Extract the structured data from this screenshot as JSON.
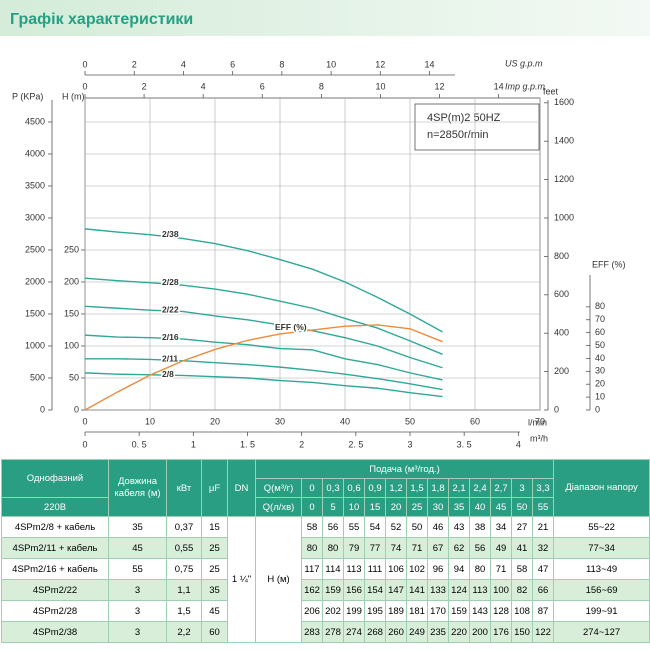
{
  "header": {
    "title": "Графік характеристики"
  },
  "chart_data": {
    "type": "line",
    "model_label": "4SP(m)2  50HZ",
    "speed_label": "n=2850r/min",
    "p_label": "P (KPa)",
    "h_label": "H (m)",
    "feet_label": "feet",
    "eff_label": "EFF (%)",
    "us_label": "US g.p.m",
    "imp_label": "Imp g.p.m",
    "x_label": "l/min",
    "m3h_label": "m³/h",
    "x": [
      0,
      5,
      10,
      15,
      20,
      25,
      30,
      35,
      40,
      45,
      50,
      55
    ],
    "series": [
      {
        "name": "2/8",
        "color": "#2fa897",
        "values": [
          58,
          56,
          55,
          54,
          52,
          50,
          46,
          43,
          38,
          34,
          27,
          21
        ]
      },
      {
        "name": "2/11",
        "color": "#2fa897",
        "values": [
          80,
          80,
          79,
          77,
          74,
          71,
          67,
          62,
          56,
          49,
          41,
          32
        ]
      },
      {
        "name": "2/16",
        "color": "#2fa897",
        "values": [
          117,
          114,
          113,
          111,
          106,
          102,
          96,
          94,
          80,
          71,
          58,
          47
        ]
      },
      {
        "name": "2/22",
        "color": "#2fa897",
        "values": [
          162,
          159,
          156,
          154,
          147,
          141,
          133,
          124,
          113,
          100,
          82,
          66
        ]
      },
      {
        "name": "2/28",
        "color": "#2fa897",
        "values": [
          206,
          202,
          199,
          195,
          189,
          181,
          170,
          159,
          143,
          128,
          108,
          87
        ]
      },
      {
        "name": "2/38",
        "color": "#2fa897",
        "values": [
          283,
          278,
          274,
          268,
          260,
          249,
          235,
          220,
          200,
          176,
          150,
          122
        ]
      },
      {
        "name": "EFF (%)",
        "color": "#ee8a3c",
        "axis": "y2",
        "values": [
          0,
          14,
          27,
          38,
          47,
          54,
          59,
          62,
          65,
          66,
          63,
          53
        ]
      }
    ],
    "xlim": [
      0,
      70
    ],
    "xticks": [
      0,
      10,
      20,
      30,
      40,
      50,
      60,
      70
    ],
    "m3h_lim": [
      0,
      4.2
    ],
    "m3h_ticks": [
      0,
      {
        "value": 0.5,
        "label": "0. 5"
      },
      1,
      {
        "value": 1.5,
        "label": "1. 5"
      },
      2,
      {
        "value": 2.5,
        "label": "2. 5"
      },
      3,
      {
        "value": 3.5,
        "label": "3. 5"
      },
      4
    ],
    "us_lim": [
      0,
      18.49
    ],
    "us_ticks": [
      0,
      2,
      4,
      6,
      8,
      10,
      12,
      14
    ],
    "imp_lim": [
      0,
      15.4
    ],
    "imp_ticks": [
      0,
      2,
      4,
      6,
      8,
      10,
      12,
      14
    ],
    "ylim": [
      0,
      487.5
    ],
    "yticks": [
      0,
      50,
      100,
      150,
      200,
      250
    ],
    "p_lim": [
      0,
      4875
    ],
    "p_ticks": [
      0,
      500,
      1000,
      1500,
      2000,
      2500,
      3000,
      3500,
      4000,
      4500
    ],
    "feet_lim": [
      0,
      1625
    ],
    "feet_ticks": [
      0,
      200,
      400,
      600,
      800,
      1000,
      1200,
      1400,
      1600
    ],
    "y2lim": [
      0,
      242
    ],
    "y2ticks": [
      0,
      10,
      20,
      30,
      40,
      50,
      60,
      70,
      80
    ],
    "grid": true
  },
  "table": {
    "phase": "Однофазний",
    "voltage": "220В",
    "cable": "Довжина кабеля (м)",
    "power": "кВт",
    "capacitance": "μF",
    "dn_head": "DN",
    "flow": "Подача (м³/год.)",
    "q_m3h_label": "Q(м³/г)",
    "q_lmin_label": "Q(л/хв)",
    "range": "Діапазон напору",
    "q_m3h": [
      "0",
      "0,3",
      "0,6",
      "0,9",
      "1,2",
      "1,5",
      "1,8",
      "2,1",
      "2,4",
      "2,7",
      "3",
      "3,3"
    ],
    "q_lmin": [
      "0",
      "5",
      "10",
      "15",
      "20",
      "25",
      "30",
      "35",
      "40",
      "45",
      "50",
      "55"
    ],
    "dn": "1 ¼\"",
    "head": "H (м)",
    "rows": [
      {
        "model": "4SPm2/8 + кабель",
        "cable": "35",
        "kw": "0,37",
        "uf": "15",
        "h": [
          "58",
          "56",
          "55",
          "54",
          "52",
          "50",
          "46",
          "43",
          "38",
          "34",
          "27",
          "21"
        ],
        "range": "55~22"
      },
      {
        "model": "4SPm2/11 + кабель",
        "cable": "45",
        "kw": "0,55",
        "uf": "25",
        "h": [
          "80",
          "80",
          "79",
          "77",
          "74",
          "71",
          "67",
          "62",
          "56",
          "49",
          "41",
          "32"
        ],
        "range": "77~34"
      },
      {
        "model": "4SPm2/16 + кабель",
        "cable": "55",
        "kw": "0,75",
        "uf": "25",
        "h": [
          "117",
          "114",
          "113",
          "111",
          "106",
          "102",
          "96",
          "94",
          "80",
          "71",
          "58",
          "47"
        ],
        "range": "113~49"
      },
      {
        "model": "4SPm2/22",
        "cable": "3",
        "kw": "1,1",
        "uf": "35",
        "h": [
          "162",
          "159",
          "156",
          "154",
          "147",
          "141",
          "133",
          "124",
          "113",
          "100",
          "82",
          "66"
        ],
        "range": "156~69"
      },
      {
        "model": "4SPm2/28",
        "cable": "3",
        "kw": "1,5",
        "uf": "45",
        "h": [
          "206",
          "202",
          "199",
          "195",
          "189",
          "181",
          "170",
          "159",
          "143",
          "128",
          "108",
          "87"
        ],
        "range": "199~91"
      },
      {
        "model": "4SPm2/38",
        "cable": "3",
        "kw": "2,2",
        "uf": "60",
        "h": [
          "283",
          "278",
          "274",
          "268",
          "260",
          "249",
          "235",
          "220",
          "200",
          "176",
          "150",
          "122"
        ],
        "range": "274~127"
      }
    ]
  }
}
